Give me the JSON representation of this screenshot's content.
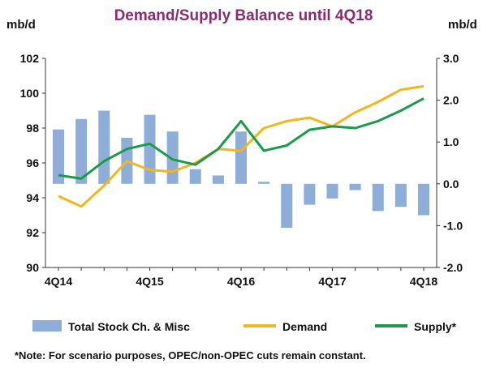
{
  "chart_data": {
    "type": "bar+line",
    "title": "Demand/Supply Balance until 4Q18",
    "left_axis": {
      "label": "mb/d",
      "range": [
        90,
        102
      ],
      "ticks": [
        "90",
        "92",
        "94",
        "96",
        "98",
        "100",
        "102"
      ]
    },
    "right_axis": {
      "label": "mb/d",
      "range": [
        -2.0,
        3.0
      ],
      "ticks": [
        "-2.0",
        "-1.0",
        "0.0",
        "1.0",
        "2.0",
        "3.0"
      ]
    },
    "x_ticks": [
      {
        "label": "4Q14",
        "index": 0
      },
      {
        "label": "4Q15",
        "index": 4
      },
      {
        "label": "4Q16",
        "index": 8
      },
      {
        "label": "4Q17",
        "index": 12
      },
      {
        "label": "4Q18",
        "index": 16
      }
    ],
    "categories": [
      "4Q14",
      "1Q15",
      "2Q15",
      "3Q15",
      "4Q15",
      "1Q16",
      "2Q16",
      "3Q16",
      "4Q16",
      "1Q17",
      "2Q17",
      "3Q17",
      "4Q17",
      "1Q18",
      "2Q18",
      "3Q18",
      "4Q18"
    ],
    "series": [
      {
        "name": "Total Stock Ch. & Misc",
        "kind": "bar",
        "axis": "right",
        "color": "#8eaed9",
        "values": [
          1.3,
          1.55,
          1.75,
          1.1,
          1.65,
          1.25,
          0.35,
          0.2,
          1.25,
          0.05,
          -1.05,
          -0.5,
          -0.35,
          -0.15,
          -0.65,
          -0.55,
          -0.75
        ]
      },
      {
        "name": "Demand",
        "kind": "line",
        "axis": "left",
        "color": "#f2b71c",
        "values": [
          94.1,
          93.5,
          94.7,
          96.1,
          95.6,
          95.5,
          96.0,
          96.8,
          96.7,
          98.0,
          98.4,
          98.6,
          98.1,
          98.9,
          99.5,
          100.2,
          100.4
        ]
      },
      {
        "name": "Supply*",
        "kind": "line",
        "axis": "left",
        "color": "#1a9a4a",
        "values": [
          95.3,
          95.1,
          96.1,
          96.8,
          97.1,
          96.2,
          95.9,
          96.8,
          98.4,
          96.7,
          97.0,
          97.9,
          98.1,
          98.0,
          98.4,
          99.0,
          99.7
        ]
      }
    ],
    "grid": false,
    "legend_placement": "bottom"
  },
  "note": "*Note: For scenario purposes, OPEC/non-OPEC cuts remain constant."
}
